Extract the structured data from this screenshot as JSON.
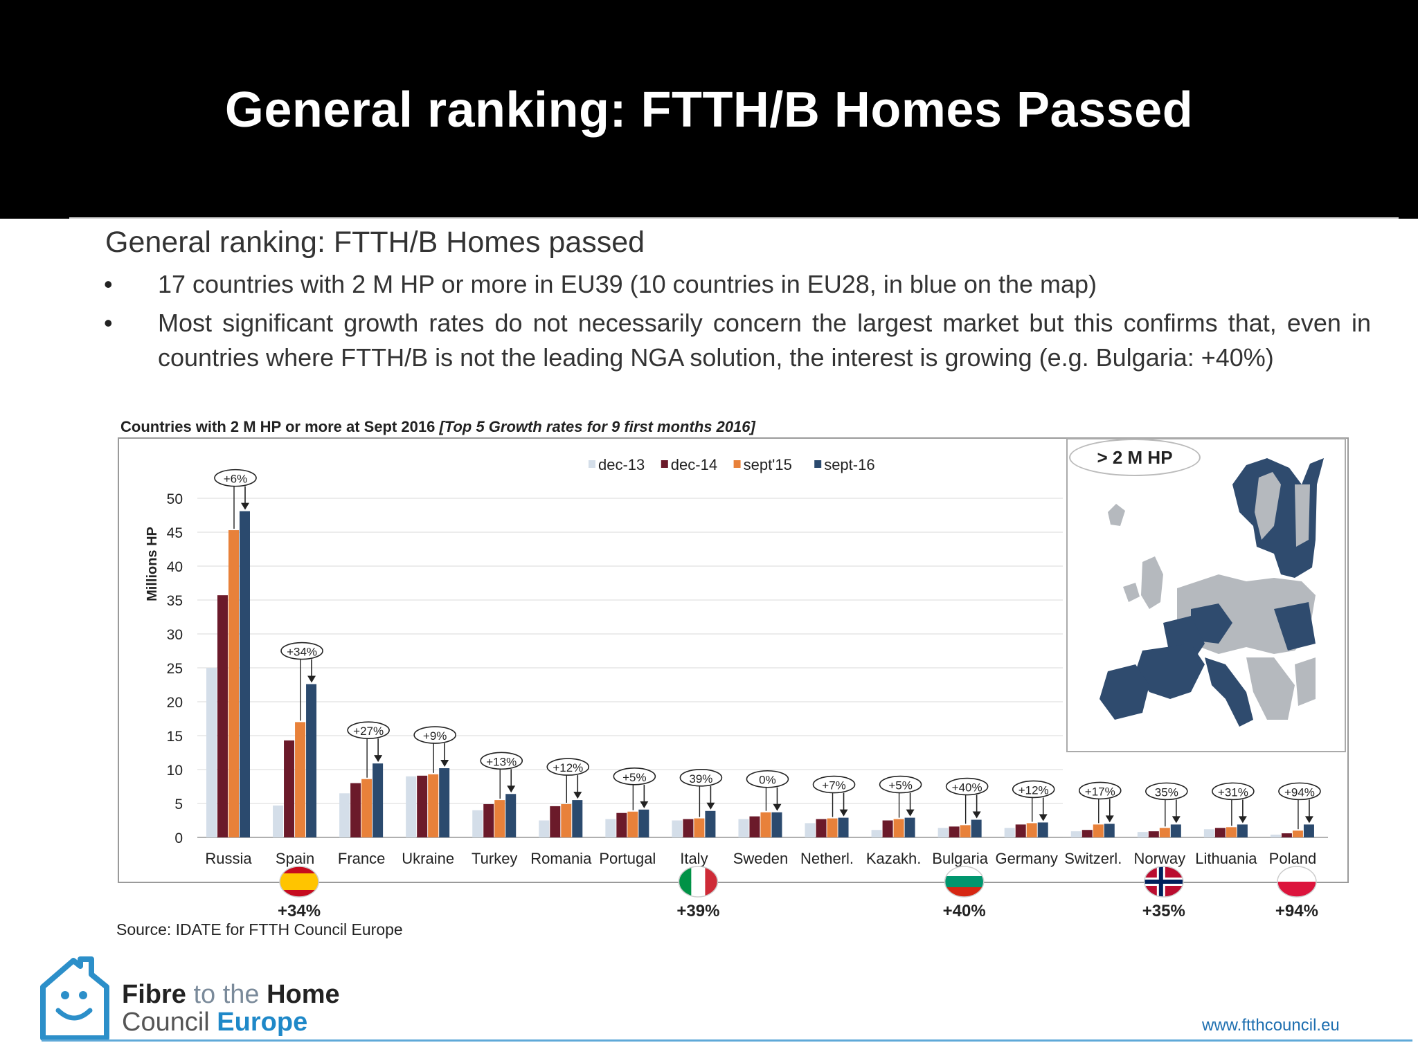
{
  "slide": {
    "title": "General ranking: FTTH/B Homes Passed",
    "heading": "General ranking: FTTH/B Homes passed",
    "bullets": [
      "17 countries with 2 M HP or more in EU39 (10 countries in EU28, in blue on the map)",
      "Most significant growth rates do not necessarily concern the largest market but this confirms that, even in countries where FTTH/B is not the leading NGA solution, the interest is growing (e.g. Bulgaria: +40%)"
    ],
    "bullet_symbol": "•",
    "source": "Source: IDATE for FTTH Council Europe",
    "map_label": "> 2 M HP",
    "logo": {
      "line1_a": "Fibre",
      "line1_b": "to the",
      "line1_c": "Home",
      "line2_a": "Council",
      "line2_b": "Europe"
    },
    "website": "www.ftthcouncil.eu"
  },
  "chart_data": {
    "type": "bar",
    "title": "Countries with 2 M HP or more at Sept 2016",
    "subtitle": "[Top 5 Growth rates for 9 first months 2016]",
    "ylabel": "Millions HP",
    "ylim": [
      0,
      50
    ],
    "yticks": [
      0,
      5,
      10,
      15,
      20,
      25,
      30,
      35,
      40,
      45,
      50
    ],
    "legend_position": "top-center",
    "categories": [
      "Russia",
      "Spain",
      "France",
      "Ukraine",
      "Turkey",
      "Romania",
      "Portugal",
      "Italy",
      "Sweden",
      "Netherl.",
      "Kazakh.",
      "Bulgaria",
      "Germany",
      "Switzerl.",
      "Norway",
      "Lithuania",
      "Poland"
    ],
    "series": [
      {
        "name": "dec-13",
        "color": "#d4dee9",
        "values": [
          25,
          4.7,
          6.5,
          9,
          4,
          2.5,
          2.7,
          2.5,
          2.7,
          2.1,
          1.1,
          1.4,
          1.4,
          0.9,
          0.8,
          1.2,
          0.4
        ]
      },
      {
        "name": "dec-14",
        "color": "#6b1a2a",
        "values": [
          35.7,
          14.3,
          8,
          9.1,
          4.9,
          4.6,
          3.6,
          2.7,
          3.1,
          2.7,
          2.5,
          1.6,
          1.9,
          1.1,
          0.9,
          1.4,
          0.6
        ]
      },
      {
        "name": "sept'15",
        "color": "#e8813a",
        "values": [
          45.3,
          17,
          8.6,
          9.3,
          5.5,
          4.9,
          3.8,
          2.8,
          3.7,
          2.8,
          2.7,
          1.8,
          2.1,
          1.9,
          1.4,
          1.5,
          1.0
        ]
      },
      {
        "name": "sept-16",
        "color": "#2b4a6e",
        "values": [
          48.1,
          22.6,
          10.9,
          10.2,
          6.4,
          5.5,
          4.1,
          3.9,
          3.7,
          2.9,
          2.9,
          2.6,
          2.2,
          2.0,
          1.9,
          1.9,
          1.9
        ]
      }
    ],
    "growth_labels": [
      "+6%",
      "+34%",
      "+27%",
      "+9%",
      "+13%",
      "+12%",
      "+5%",
      "39%",
      "0%",
      "+7%",
      "+5%",
      "+40%",
      "+12%",
      "+17%",
      "35%",
      "+31%",
      "+94%"
    ],
    "top5": [
      {
        "country": "Spain",
        "label": "+34%",
        "flag": "spain"
      },
      {
        "country": "Italy",
        "label": "+39%",
        "flag": "italy"
      },
      {
        "country": "Bulgaria",
        "label": "+40%",
        "flag": "bulgaria"
      },
      {
        "country": "Norway",
        "label": "+35%",
        "flag": "norway"
      },
      {
        "country": "Poland",
        "label": "+94%",
        "flag": "poland"
      }
    ]
  }
}
